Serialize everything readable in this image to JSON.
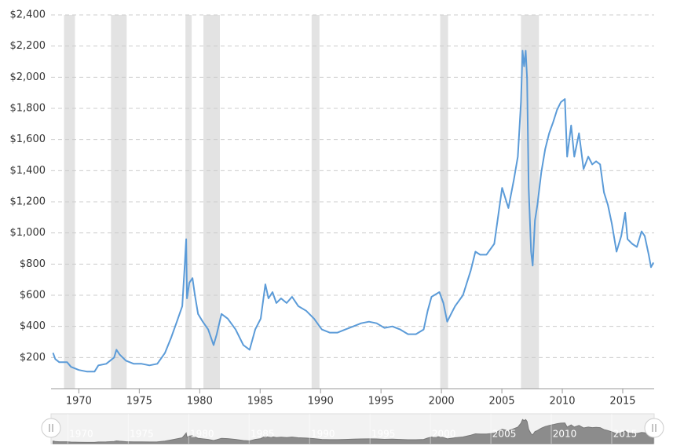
{
  "chart_data": {
    "type": "line",
    "x": [
      1967.86,
      1968.05,
      1968.38,
      1969.03,
      1969.35,
      1970.0,
      1970.65,
      1971.3,
      1971.62,
      1972.27,
      1972.92,
      1973.11,
      1973.37,
      1973.89,
      1974.54,
      1975.19,
      1975.84,
      1976.49,
      1977.13,
      1977.65,
      1978.11,
      1978.56,
      1978.75,
      1978.88,
      1978.95,
      1979.14,
      1979.4,
      1979.6,
      1979.86,
      1980.25,
      1980.7,
      1981.15,
      1981.41,
      1981.8,
      1982.32,
      1982.97,
      1983.61,
      1984.13,
      1984.59,
      1985.05,
      1985.43,
      1985.69,
      1986.02,
      1986.34,
      1986.73,
      1987.19,
      1987.64,
      1988.16,
      1988.81,
      1989.46,
      1990.1,
      1990.75,
      1991.4,
      1992.05,
      1992.7,
      1993.35,
      1994.0,
      1994.64,
      1995.29,
      1995.94,
      1996.59,
      1997.24,
      1997.89,
      1998.53,
      1998.86,
      1999.18,
      1999.83,
      2000.16,
      2000.48,
      2000.8,
      2001.13,
      2001.78,
      2002.43,
      2002.81,
      2003.2,
      2003.72,
      2004.37,
      2005.02,
      2005.54,
      2005.99,
      2006.32,
      2006.58,
      2006.71,
      2006.84,
      2006.97,
      2007.09,
      2007.22,
      2007.42,
      2007.55,
      2007.74,
      2007.94,
      2008.26,
      2008.59,
      2008.91,
      2009.24,
      2009.56,
      2009.88,
      2010.21,
      2010.4,
      2010.73,
      2010.99,
      2011.38,
      2011.76,
      2012.15,
      2012.48,
      2012.8,
      2013.13,
      2013.45,
      2013.77,
      2014.1,
      2014.49,
      2014.88,
      2015.2,
      2015.4,
      2015.78,
      2016.17,
      2016.56,
      2016.82,
      2017.15,
      2017.34,
      2017.54
    ],
    "values": [
      230,
      190,
      170,
      170,
      140,
      120,
      110,
      110,
      150,
      160,
      200,
      250,
      220,
      180,
      160,
      160,
      150,
      160,
      230,
      330,
      430,
      530,
      780,
      960,
      580,
      680,
      710,
      600,
      480,
      430,
      380,
      280,
      350,
      480,
      450,
      380,
      280,
      250,
      380,
      450,
      670,
      580,
      620,
      550,
      580,
      550,
      590,
      530,
      500,
      450,
      380,
      360,
      360,
      380,
      400,
      420,
      430,
      420,
      390,
      400,
      380,
      350,
      350,
      380,
      500,
      590,
      620,
      550,
      430,
      480,
      530,
      600,
      760,
      880,
      860,
      860,
      930,
      1290,
      1160,
      1340,
      1490,
      1840,
      2170,
      2070,
      2170,
      1990,
      1290,
      880,
      790,
      1080,
      1180,
      1390,
      1540,
      1640,
      1710,
      1790,
      1840,
      1860,
      1490,
      1690,
      1490,
      1640,
      1410,
      1490,
      1440,
      1460,
      1440,
      1260,
      1180,
      1060,
      880,
      980,
      1130,
      960,
      930,
      910,
      1010,
      980,
      860,
      780,
      810
    ],
    "color": "#5b9bd8",
    "xlim": [
      1967.7,
      2017.6
    ],
    "xticks": [
      1970,
      1975,
      1980,
      1985,
      1990,
      1995,
      2000,
      2005,
      2010,
      2015
    ],
    "ylim": [
      0,
      2400
    ],
    "yticks": [
      {
        "value": 200,
        "label": "$200"
      },
      {
        "value": 400,
        "label": "$400"
      },
      {
        "value": 600,
        "label": "$600"
      },
      {
        "value": 800,
        "label": "$800"
      },
      {
        "value": 1000,
        "label": "$1,000"
      },
      {
        "value": 1200,
        "label": "$1,200"
      },
      {
        "value": 1400,
        "label": "$1,400"
      },
      {
        "value": 1600,
        "label": "$1,600"
      },
      {
        "value": 1800,
        "label": "$1,800"
      },
      {
        "value": 2000,
        "label": "$2,000"
      },
      {
        "value": 2200,
        "label": "$2,200"
      },
      {
        "value": 2400,
        "label": "$2,400"
      }
    ],
    "grid": true,
    "shaded_ranges": [
      [
        1968.77,
        1969.68
      ],
      [
        1972.66,
        1973.96
      ],
      [
        1978.82,
        1979.34
      ],
      [
        1980.31,
        1981.67
      ],
      [
        1989.26,
        1989.91
      ],
      [
        1999.9,
        2000.55
      ],
      [
        2006.58,
        2008.07
      ]
    ],
    "shade_color": "#e3e3e3"
  }
}
